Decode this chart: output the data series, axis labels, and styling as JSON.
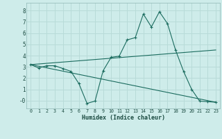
{
  "xlabel": "Humidex (Indice chaleur)",
  "background_color": "#ceecea",
  "grid_color": "#b8dbd8",
  "line_color": "#1a6b5e",
  "xlim": [
    -0.5,
    23.5
  ],
  "ylim": [
    -0.7,
    8.7
  ],
  "yticks": [
    0,
    1,
    2,
    3,
    4,
    5,
    6,
    7,
    8
  ],
  "ytick_labels": [
    "-0",
    "1",
    "2",
    "3",
    "4",
    "5",
    "6",
    "7",
    "8"
  ],
  "xticks": [
    0,
    1,
    2,
    3,
    4,
    5,
    6,
    7,
    8,
    9,
    10,
    11,
    12,
    13,
    14,
    15,
    16,
    17,
    18,
    19,
    20,
    21,
    22,
    23
  ],
  "series1_x": [
    0,
    1,
    2,
    3,
    4,
    5,
    6,
    7,
    8,
    9,
    10,
    11,
    12,
    13,
    14,
    15,
    16,
    17,
    18,
    19,
    20,
    21,
    22,
    23
  ],
  "series1_y": [
    3.2,
    2.9,
    3.1,
    3.1,
    2.85,
    2.6,
    1.5,
    -0.25,
    -0.05,
    2.65,
    3.85,
    3.95,
    5.4,
    5.6,
    7.7,
    6.55,
    7.9,
    6.85,
    4.5,
    2.6,
    1.0,
    -0.05,
    -0.1,
    -0.15
  ],
  "series2_x": [
    0,
    23
  ],
  "series2_y": [
    3.2,
    -0.15
  ],
  "series3_x": [
    0,
    23
  ],
  "series3_y": [
    3.2,
    4.5
  ]
}
